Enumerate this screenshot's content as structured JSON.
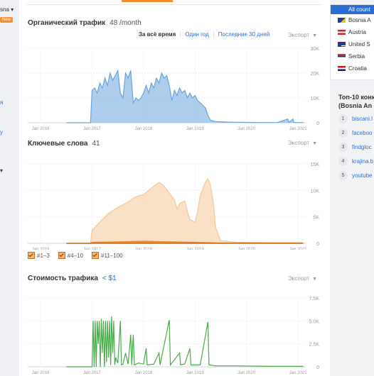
{
  "left": {
    "label1": "sna ▾",
    "new_badge": "New",
    "mark1": "я",
    "mark2": "у",
    "mark3": "▾"
  },
  "organic": {
    "title": "Органический трафик",
    "value": "48 /month",
    "ranges": [
      "За всё время",
      "Один год",
      "Последние 30 дней"
    ],
    "active_range": 0,
    "export": "Экспорт"
  },
  "keywords": {
    "title": "Ключевые слова",
    "value": "41",
    "export": "Экспорт"
  },
  "legend": [
    "#1–3",
    "#4–10",
    "#11–100"
  ],
  "cost": {
    "title": "Стоимость трафика",
    "value": "< $1",
    "export": "Экспорт"
  },
  "countries": {
    "all": "All count",
    "items": [
      {
        "name": "Bosnia A",
        "flag": "ba"
      },
      {
        "name": "Austria",
        "flag": "at"
      },
      {
        "name": "United S",
        "flag": "us"
      },
      {
        "name": "Serbia",
        "flag": "rs"
      },
      {
        "name": "Croatia",
        "flag": "hr"
      }
    ]
  },
  "top10": {
    "title1": "Топ-10 конк",
    "title2": "(Bosnia An",
    "items": [
      "biscani.l",
      "faceboo",
      "findgloc",
      "krajina.b",
      "youtube"
    ]
  },
  "chart_data": [
    {
      "type": "area",
      "title": "Органический трафик",
      "x_ticks": [
        "Jan 2016",
        "Jan 2017",
        "Jan 2018",
        "Jan 2019",
        "Jan 2020",
        "Jan 2021"
      ],
      "y_ticks": [
        "30K",
        "20K",
        "10K",
        "0"
      ],
      "ylim": [
        0,
        30000
      ],
      "color": "#6aa4dc",
      "series": [
        {
          "values": [
            [
              2016.5,
              0
            ],
            [
              2016.97,
              0
            ],
            [
              2017.0,
              13000
            ],
            [
              2017.05,
              14000
            ],
            [
              2017.1,
              12000
            ],
            [
              2017.15,
              16000
            ],
            [
              2017.2,
              14000
            ],
            [
              2017.25,
              18000
            ],
            [
              2017.3,
              15000
            ],
            [
              2017.35,
              20000
            ],
            [
              2017.4,
              17000
            ],
            [
              2017.45,
              19000
            ],
            [
              2017.5,
              21000
            ],
            [
              2017.55,
              12000
            ],
            [
              2017.6,
              10000
            ],
            [
              2017.65,
              20000
            ],
            [
              2017.7,
              18000
            ],
            [
              2017.75,
              21000
            ],
            [
              2017.8,
              8000
            ],
            [
              2017.85,
              10000
            ],
            [
              2017.9,
              9000
            ],
            [
              2017.95,
              10000
            ],
            [
              2018.0,
              12000
            ],
            [
              2018.05,
              15000
            ],
            [
              2018.1,
              12000
            ],
            [
              2018.15,
              16000
            ],
            [
              2018.2,
              14000
            ],
            [
              2018.25,
              18000
            ],
            [
              2018.3,
              16000
            ],
            [
              2018.35,
              20000
            ],
            [
              2018.4,
              18000
            ],
            [
              2018.45,
              19000
            ],
            [
              2018.5,
              15000
            ],
            [
              2018.55,
              9000
            ],
            [
              2018.6,
              13000
            ],
            [
              2018.65,
              11000
            ],
            [
              2018.7,
              14000
            ],
            [
              2018.75,
              12000
            ],
            [
              2018.8,
              13000
            ],
            [
              2018.85,
              10000
            ],
            [
              2018.9,
              12000
            ],
            [
              2018.95,
              10000
            ],
            [
              2019.0,
              11000
            ],
            [
              2019.05,
              9000
            ],
            [
              2019.1,
              8000
            ],
            [
              2019.15,
              7000
            ],
            [
              2019.2,
              6000
            ],
            [
              2019.25,
              3000
            ],
            [
              2019.3,
              1000
            ],
            [
              2019.4,
              500
            ],
            [
              2019.6,
              300
            ],
            [
              2019.8,
              200
            ],
            [
              2020.0,
              150
            ],
            [
              2020.3,
              100
            ],
            [
              2020.6,
              100
            ],
            [
              2020.8,
              1500
            ],
            [
              2020.82,
              100
            ],
            [
              2020.9,
              1500
            ],
            [
              2020.92,
              100
            ],
            [
              2021.0,
              100
            ],
            [
              2021.1,
              100
            ]
          ]
        }
      ]
    },
    {
      "type": "area",
      "title": "Ключевые слова",
      "x_ticks": [
        "Jan 2016",
        "Jan 2017",
        "Jan 2018",
        "Jan 2019",
        "Jan 2020",
        "Jan 2021"
      ],
      "y_ticks": [
        "15K",
        "10K",
        "5K",
        "0"
      ],
      "ylim": [
        0,
        15000
      ],
      "series": [
        {
          "name": "#11–100",
          "color": "#f5c996",
          "values": [
            [
              2016.5,
              0
            ],
            [
              2016.97,
              0
            ],
            [
              2017.0,
              2500
            ],
            [
              2017.1,
              3500
            ],
            [
              2017.2,
              4500
            ],
            [
              2017.3,
              5500
            ],
            [
              2017.4,
              6200
            ],
            [
              2017.5,
              6800
            ],
            [
              2017.6,
              7300
            ],
            [
              2017.7,
              7800
            ],
            [
              2017.8,
              8500
            ],
            [
              2017.9,
              9000
            ],
            [
              2018.0,
              9200
            ],
            [
              2018.1,
              10000
            ],
            [
              2018.2,
              10800
            ],
            [
              2018.3,
              11500
            ],
            [
              2018.35,
              11200
            ],
            [
              2018.4,
              10800
            ],
            [
              2018.5,
              9500
            ],
            [
              2018.6,
              8200
            ],
            [
              2018.65,
              6500
            ],
            [
              2018.7,
              7500
            ],
            [
              2018.8,
              8000
            ],
            [
              2018.85,
              6000
            ],
            [
              2018.9,
              4500
            ],
            [
              2019.0,
              4000
            ],
            [
              2019.05,
              6000
            ],
            [
              2019.1,
              9000
            ],
            [
              2019.2,
              11500
            ],
            [
              2019.25,
              12200
            ],
            [
              2019.3,
              11000
            ],
            [
              2019.35,
              8000
            ],
            [
              2019.4,
              3000
            ],
            [
              2019.5,
              500
            ],
            [
              2019.8,
              200
            ],
            [
              2020.5,
              100
            ],
            [
              2021.1,
              100
            ]
          ]
        },
        {
          "name": "#4–10",
          "color": "#e08a2e",
          "values": [
            [
              2016.5,
              0
            ],
            [
              2016.97,
              0
            ],
            [
              2017.0,
              200
            ],
            [
              2017.5,
              300
            ],
            [
              2018.0,
              400
            ],
            [
              2018.5,
              300
            ],
            [
              2019.0,
              200
            ],
            [
              2019.4,
              100
            ],
            [
              2021.1,
              50
            ]
          ]
        },
        {
          "name": "#1–3",
          "color": "#b85a10",
          "values": [
            [
              2016.5,
              0
            ],
            [
              2021.1,
              0
            ]
          ]
        }
      ]
    },
    {
      "type": "line",
      "title": "Стоимость трафика",
      "x_ticks": [
        "Jan 2016",
        "Jan 2017",
        "Jan 2018",
        "Jan 2019",
        "Jan 2020",
        "Jan 2021"
      ],
      "y_ticks": [
        "7.5K",
        "5.0K",
        "2.5K",
        "0"
      ],
      "ylim": [
        0,
        7500
      ],
      "color": "#4aaa4a",
      "series": [
        {
          "values": [
            [
              2016.5,
              0
            ],
            [
              2017.0,
              0
            ],
            [
              2017.02,
              5000
            ],
            [
              2017.04,
              0
            ],
            [
              2017.06,
              5000
            ],
            [
              2017.08,
              0
            ],
            [
              2017.1,
              5000
            ],
            [
              2017.12,
              2500
            ],
            [
              2017.14,
              5000
            ],
            [
              2017.16,
              0
            ],
            [
              2017.18,
              5200
            ],
            [
              2017.2,
              1500
            ],
            [
              2017.22,
              5000
            ],
            [
              2017.24,
              0
            ],
            [
              2017.26,
              5000
            ],
            [
              2017.28,
              500
            ],
            [
              2017.3,
              5000
            ],
            [
              2017.32,
              1000
            ],
            [
              2017.34,
              5000
            ],
            [
              2017.36,
              200
            ],
            [
              2017.38,
              5500
            ],
            [
              2017.4,
              1500
            ],
            [
              2017.42,
              5000
            ],
            [
              2017.44,
              200
            ],
            [
              2017.46,
              1000
            ],
            [
              2017.5,
              400
            ],
            [
              2017.55,
              5000
            ],
            [
              2017.57,
              200
            ],
            [
              2017.6,
              300
            ],
            [
              2017.65,
              1500
            ],
            [
              2017.7,
              300
            ],
            [
              2017.75,
              3500
            ],
            [
              2017.77,
              200
            ],
            [
              2017.8,
              3500
            ],
            [
              2017.82,
              200
            ],
            [
              2017.9,
              400
            ],
            [
              2018.0,
              300
            ],
            [
              2018.05,
              2000
            ],
            [
              2018.07,
              200
            ],
            [
              2018.2,
              300
            ],
            [
              2018.3,
              1500
            ],
            [
              2018.32,
              200
            ],
            [
              2018.5,
              5100
            ],
            [
              2018.52,
              200
            ],
            [
              2018.7,
              1500
            ],
            [
              2018.72,
              200
            ],
            [
              2018.8,
              300
            ],
            [
              2018.9,
              2000
            ],
            [
              2018.92,
              200
            ],
            [
              2019.0,
              200
            ],
            [
              2019.1,
              200
            ],
            [
              2019.25,
              4900
            ],
            [
              2019.27,
              200
            ],
            [
              2019.4,
              100
            ],
            [
              2019.8,
              100
            ],
            [
              2020.5,
              50
            ],
            [
              2021.1,
              50
            ]
          ]
        }
      ]
    }
  ]
}
